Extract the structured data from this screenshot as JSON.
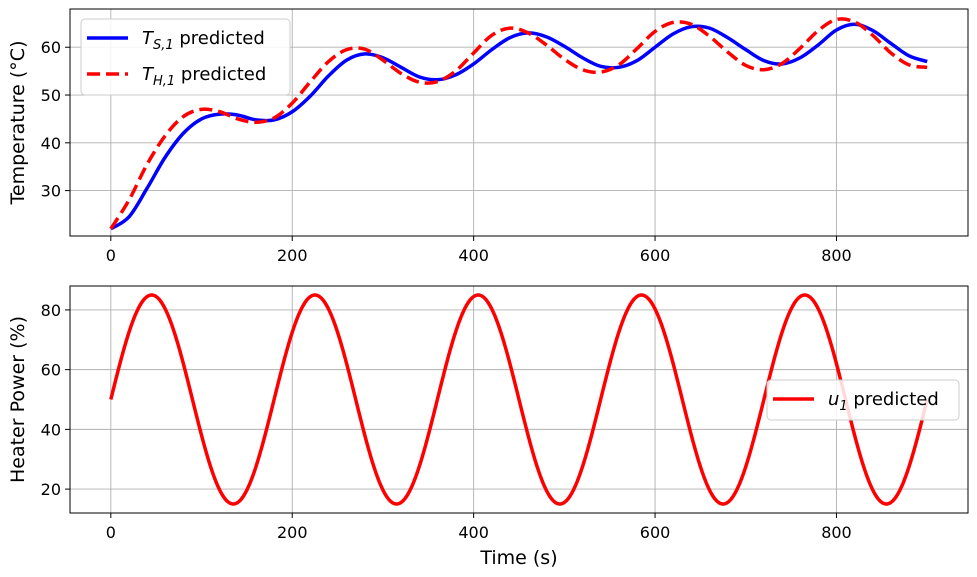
{
  "chart_data": [
    {
      "type": "line",
      "title": "",
      "xlabel": "",
      "ylabel": "Temperature (°C)",
      "xlim": [
        -45,
        945
      ],
      "ylim": [
        20.5,
        68
      ],
      "xticks": [
        0,
        200,
        400,
        600,
        800
      ],
      "yticks": [
        30,
        40,
        50,
        60
      ],
      "grid": true,
      "legend_position": "top-left",
      "series": [
        {
          "name": "T_{S,1} predicted",
          "legend_main": "T",
          "legend_sub": "S,1",
          "legend_rest": " predicted",
          "color": "#0000ff",
          "style": "solid",
          "x": [
            0,
            20,
            40,
            60,
            80,
            100,
            120,
            140,
            160,
            180,
            200,
            220,
            240,
            260,
            280,
            300,
            320,
            340,
            360,
            380,
            400,
            420,
            440,
            460,
            480,
            500,
            520,
            540,
            560,
            580,
            600,
            620,
            640,
            660,
            680,
            700,
            720,
            740,
            760,
            780,
            800,
            820,
            840,
            860,
            880,
            900
          ],
          "y": [
            22.0,
            24.5,
            30.5,
            37.0,
            42.0,
            45.0,
            46.0,
            45.8,
            44.8,
            44.8,
            46.5,
            49.8,
            54.0,
            57.3,
            58.6,
            57.8,
            55.8,
            53.8,
            53.2,
            54.2,
            56.5,
            59.5,
            62.0,
            63.0,
            62.2,
            60.2,
            57.8,
            56.0,
            55.8,
            57.2,
            60.0,
            62.8,
            64.3,
            64.0,
            62.0,
            59.5,
            57.2,
            56.5,
            57.8,
            60.5,
            63.6,
            64.8,
            63.5,
            60.8,
            58.2,
            57.0
          ]
        },
        {
          "name": "T_{H,1} predicted",
          "legend_main": "T",
          "legend_sub": "H,1",
          "legend_rest": " predicted",
          "color": "#ff0000",
          "style": "dashed",
          "x": [
            0,
            20,
            40,
            60,
            80,
            100,
            120,
            140,
            160,
            180,
            200,
            220,
            240,
            260,
            280,
            300,
            320,
            340,
            360,
            380,
            400,
            420,
            440,
            460,
            480,
            500,
            520,
            540,
            560,
            580,
            600,
            620,
            640,
            660,
            680,
            700,
            720,
            740,
            760,
            780,
            800,
            820,
            840,
            860,
            880,
            900
          ],
          "y": [
            22.0,
            28.0,
            35.5,
            41.5,
            45.5,
            47.0,
            46.5,
            45.0,
            44.3,
            45.2,
            48.3,
            52.8,
            57.0,
            59.5,
            59.6,
            57.3,
            54.5,
            52.7,
            52.8,
            55.0,
            58.8,
            62.5,
            64.0,
            63.0,
            60.5,
            57.5,
            55.3,
            54.8,
            56.3,
            59.7,
            63.3,
            65.2,
            64.8,
            62.3,
            59.0,
            56.2,
            55.3,
            56.6,
            59.8,
            63.5,
            65.8,
            65.3,
            62.5,
            58.8,
            56.3,
            55.8
          ]
        }
      ]
    },
    {
      "type": "line",
      "title": "",
      "xlabel": "Time (s)",
      "ylabel": "Heater Power (%)",
      "xlim": [
        -45,
        945
      ],
      "ylim": [
        12,
        88
      ],
      "xticks": [
        0,
        200,
        400,
        600,
        800
      ],
      "yticks": [
        20,
        40,
        60,
        80
      ],
      "grid": true,
      "legend_position": "center-right",
      "series": [
        {
          "name": "u_{1} predicted",
          "legend_main": "u",
          "legend_sub": "1",
          "legend_rest": " predicted",
          "color": "#ff0000",
          "style": "solid",
          "function": {
            "kind": "sine",
            "offset": 50,
            "amplitude": 35,
            "period": 180,
            "x_start": 0,
            "x_end": 900
          }
        }
      ]
    }
  ]
}
